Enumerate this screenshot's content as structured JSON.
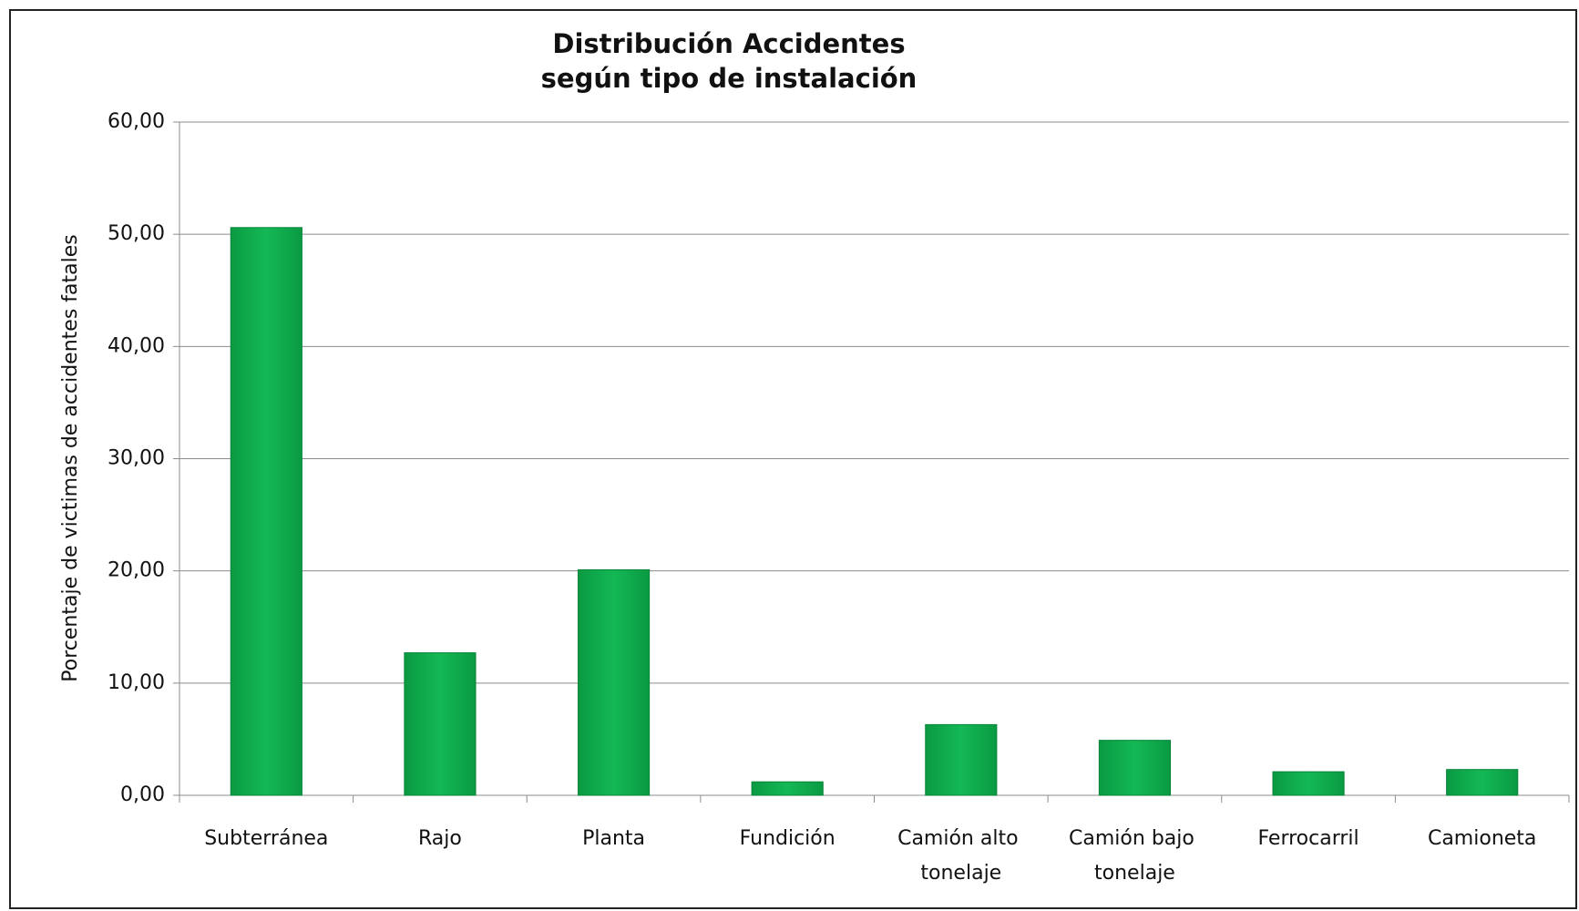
{
  "chart_data": {
    "type": "bar",
    "title": [
      "Distribución Accidentes",
      "según tipo de instalación"
    ],
    "y_label": "Porcentaje de victimas de accidentes fatales",
    "categories": [
      "Subterránea",
      "Rajo",
      "Planta",
      "Fundición",
      "Camión alto tonelaje",
      "Camión bajo tonelaje",
      "Ferrocarril",
      "Camioneta"
    ],
    "values": [
      50.6,
      12.7,
      20.1,
      1.2,
      6.3,
      4.9,
      2.1,
      2.3
    ],
    "color": "#12b150",
    "ylim": [
      0,
      60
    ],
    "yticks": [
      {
        "value": 0,
        "label": "0,00"
      },
      {
        "value": 10,
        "label": "10,00"
      },
      {
        "value": 20,
        "label": "20,00"
      },
      {
        "value": 30,
        "label": "30,00"
      },
      {
        "value": 40,
        "label": "40,00"
      },
      {
        "value": 50,
        "label": "50,00"
      },
      {
        "value": 60,
        "label": "60,00"
      }
    ],
    "grid": true
  }
}
